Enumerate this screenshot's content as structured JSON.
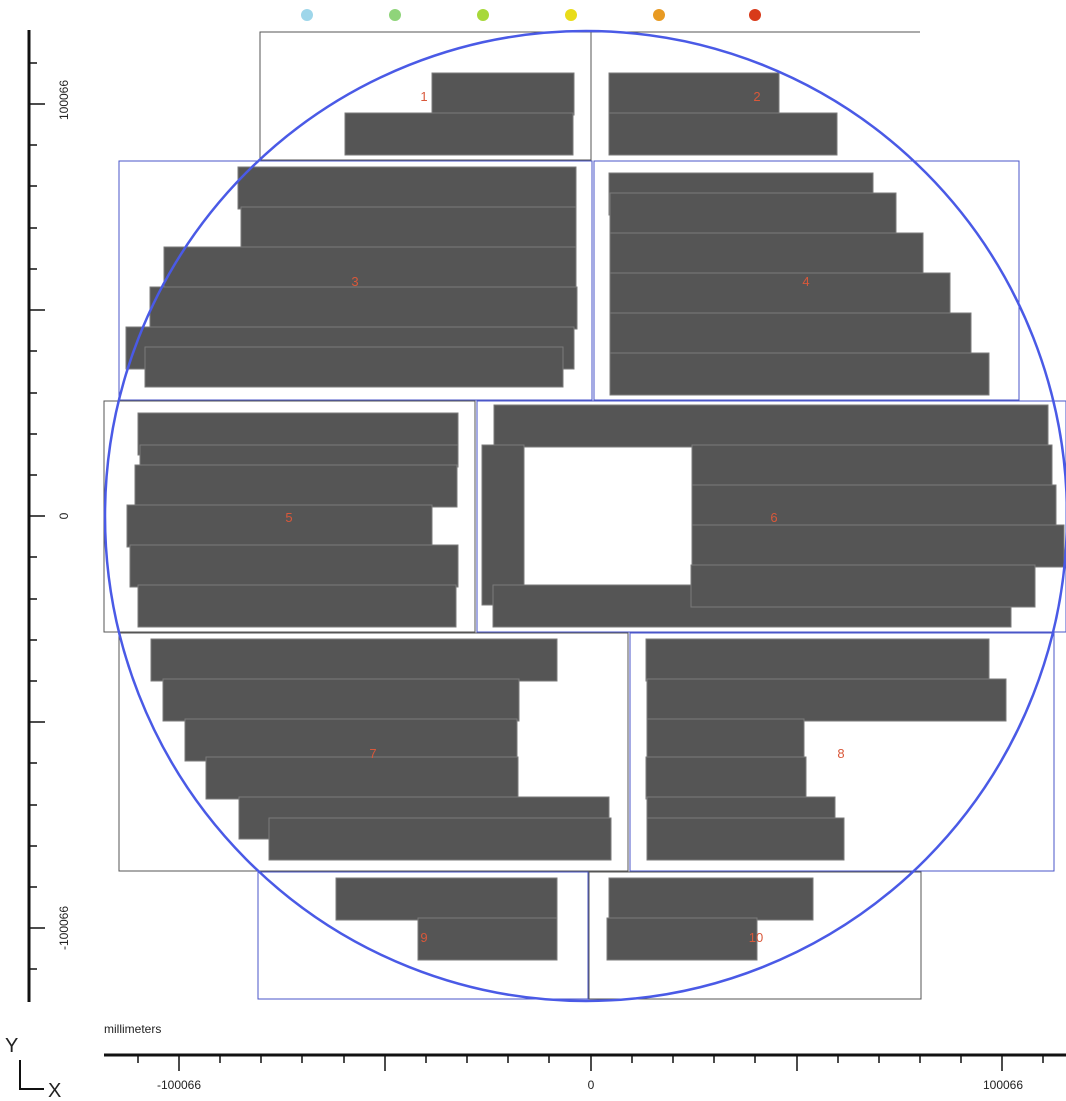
{
  "units_label": "millimeters",
  "axis_letters": {
    "y": "Y",
    "x": "X"
  },
  "x_tick_labels": [
    "-100066",
    "0",
    "100066"
  ],
  "y_tick_labels": [
    "100066",
    "0",
    "-100066"
  ],
  "legend_dots": [
    {
      "color": "#9ed6ea"
    },
    {
      "color": "#8fd47a"
    },
    {
      "color": "#a7d83a"
    },
    {
      "color": "#e9dc1a"
    },
    {
      "color": "#e89a22"
    },
    {
      "color": "#d83a1a"
    }
  ],
  "colors": {
    "block_fill": "#555555",
    "block_edge": "#7a7a7a",
    "circle": "#4a5ae6",
    "frame_blue": "#4a56c8",
    "frame_gray": "#555555",
    "region_label": "#d9583a"
  },
  "regions": [
    {
      "id": "1",
      "label": "1"
    },
    {
      "id": "2",
      "label": "2"
    },
    {
      "id": "3",
      "label": "3"
    },
    {
      "id": "4",
      "label": "4"
    },
    {
      "id": "5",
      "label": "5"
    },
    {
      "id": "6",
      "label": "6"
    },
    {
      "id": "7",
      "label": "7"
    },
    {
      "id": "8",
      "label": "8"
    },
    {
      "id": "9",
      "label": "9"
    },
    {
      "id": "10",
      "label": "10"
    }
  ]
}
